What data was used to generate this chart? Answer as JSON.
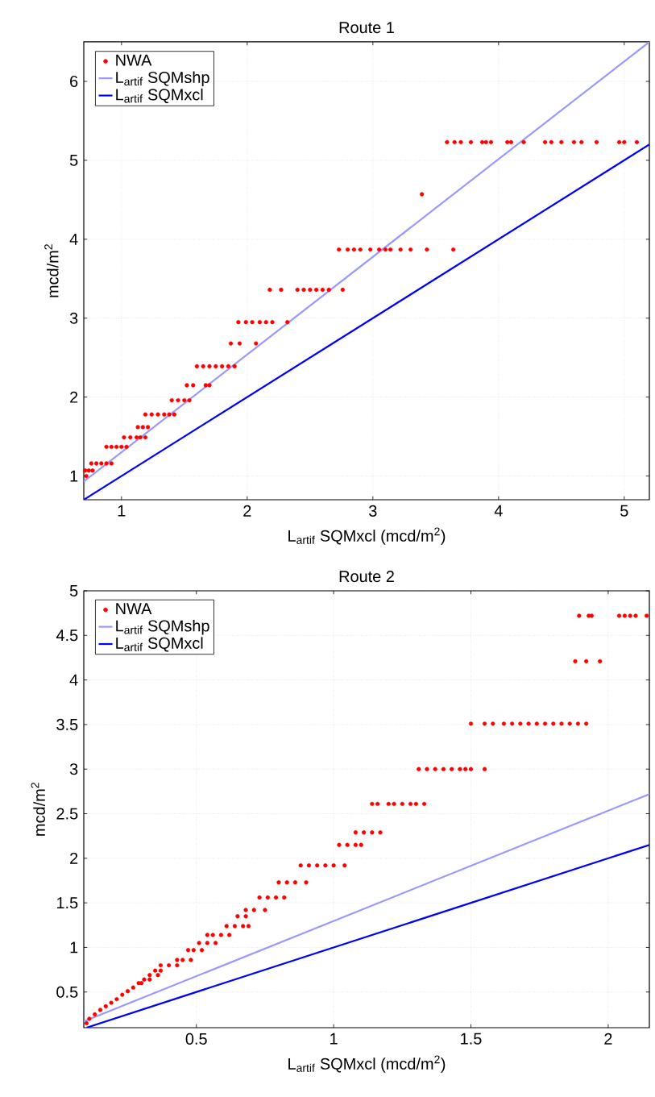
{
  "chart_data": [
    {
      "type": "scatter",
      "title": "Route 1",
      "xlabel": "L$_{artif}$ SQMxcl (mcd/m$^{2}$)",
      "ylabel": "mcd/m$^{2}$",
      "xlim": [
        0.7,
        5.2
      ],
      "ylim": [
        0.7,
        6.5
      ],
      "xticks": [
        1,
        2,
        3,
        4,
        5
      ],
      "yticks": [
        1,
        2,
        3,
        4,
        5,
        6
      ],
      "grid": true,
      "legend": "top left",
      "series": [
        {
          "name": "NWA",
          "type": "scatter",
          "color": "#ff0000",
          "x": [
            0.72,
            0.71,
            0.74,
            0.77,
            0.76,
            0.8,
            0.84,
            0.88,
            0.92,
            0.88,
            0.92,
            0.96,
            1.0,
            1.04,
            1.02,
            1.07,
            1.12,
            1.15,
            1.19,
            1.13,
            1.17,
            1.21,
            1.19,
            1.24,
            1.29,
            1.34,
            1.38,
            1.42,
            1.4,
            1.45,
            1.5,
            1.54,
            1.52,
            1.57,
            1.67,
            1.7,
            1.6,
            1.65,
            1.7,
            1.75,
            1.8,
            1.85,
            1.9,
            1.87,
            1.94,
            2.07,
            1.93,
            1.99,
            2.04,
            2.1,
            2.15,
            2.2,
            2.32,
            2.18,
            2.27,
            2.4,
            2.45,
            2.5,
            2.55,
            2.6,
            2.65,
            2.76,
            2.73,
            2.8,
            2.85,
            2.9,
            2.98,
            3.05,
            3.1,
            3.14,
            3.22,
            3.3,
            3.43,
            3.64,
            3.39,
            3.59,
            3.65,
            3.7,
            3.78,
            3.87,
            3.9,
            3.94,
            4.07,
            4.1,
            4.2,
            4.37,
            4.42,
            4.5,
            4.6,
            4.66,
            4.78,
            4.96,
            5.0,
            5.1
          ],
          "values": [
            1.0,
            1.07,
            1.07,
            1.07,
            1.16,
            1.16,
            1.16,
            1.16,
            1.16,
            1.37,
            1.37,
            1.37,
            1.37,
            1.37,
            1.49,
            1.49,
            1.49,
            1.49,
            1.49,
            1.62,
            1.62,
            1.62,
            1.78,
            1.78,
            1.78,
            1.78,
            1.78,
            1.78,
            1.96,
            1.96,
            1.96,
            1.96,
            2.15,
            2.15,
            2.15,
            2.15,
            2.39,
            2.39,
            2.39,
            2.39,
            2.39,
            2.39,
            2.39,
            2.68,
            2.68,
            2.68,
            2.95,
            2.95,
            2.95,
            2.95,
            2.95,
            2.95,
            2.95,
            3.36,
            3.36,
            3.36,
            3.36,
            3.36,
            3.36,
            3.36,
            3.36,
            3.36,
            3.87,
            3.87,
            3.87,
            3.87,
            3.87,
            3.87,
            3.87,
            3.87,
            3.87,
            3.87,
            3.87,
            3.87,
            4.57,
            5.23,
            5.23,
            5.23,
            5.23,
            5.23,
            5.23,
            5.23,
            5.23,
            5.23,
            5.23,
            5.23,
            5.23,
            5.23,
            5.23,
            5.23,
            5.23,
            5.23,
            5.23,
            5.23
          ]
        },
        {
          "name": "L$_{artif}$ SQMshp",
          "type": "line",
          "color": "#9999ff",
          "x": [
            0.7,
            5.2
          ],
          "values": [
            0.93,
            6.5
          ]
        },
        {
          "name": "L$_{artif}$ SQMxcl",
          "type": "line",
          "color": "#0000ff",
          "x": [
            0.7,
            5.2
          ],
          "values": [
            0.7,
            5.2
          ]
        }
      ]
    },
    {
      "type": "scatter",
      "title": "Route 2",
      "xlabel": "L$_{artif}$ SQMxcl (mcd/m$^{2}$)",
      "ylabel": "mcd/m$^{2}$",
      "xlim": [
        0.09,
        2.15
      ],
      "ylim": [
        0.1,
        5
      ],
      "xticks": [
        0.5,
        1,
        1.5,
        2
      ],
      "yticks": [
        0.5,
        1,
        1.5,
        2,
        2.5,
        3,
        3.5,
        4,
        4.5,
        5
      ],
      "grid": true,
      "legend": "top left",
      "series": [
        {
          "name": "NWA",
          "type": "scatter",
          "color": "#ff0000",
          "x": [
            0.1,
            0.11,
            0.13,
            0.15,
            0.17,
            0.19,
            0.21,
            0.23,
            0.25,
            0.27,
            0.29,
            0.31,
            0.33,
            0.3,
            0.33,
            0.36,
            0.35,
            0.37,
            0.37,
            0.4,
            0.43,
            0.43,
            0.45,
            0.48,
            0.47,
            0.49,
            0.52,
            0.51,
            0.54,
            0.57,
            0.54,
            0.56,
            0.59,
            0.62,
            0.61,
            0.64,
            0.67,
            0.69,
            0.65,
            0.68,
            0.68,
            0.71,
            0.75,
            0.73,
            0.76,
            0.79,
            0.82,
            0.8,
            0.83,
            0.86,
            0.9,
            0.88,
            0.91,
            0.94,
            0.97,
            1.0,
            1.04,
            1.02,
            1.05,
            1.08,
            1.1,
            1.08,
            1.11,
            1.14,
            1.17,
            1.14,
            1.16,
            1.2,
            1.22,
            1.25,
            1.28,
            1.3,
            1.33,
            1.31,
            1.34,
            1.37,
            1.4,
            1.43,
            1.46,
            1.48,
            1.5,
            1.55,
            1.5,
            1.55,
            1.58,
            1.62,
            1.65,
            1.68,
            1.71,
            1.74,
            1.77,
            1.8,
            1.83,
            1.86,
            1.89,
            1.92,
            1.88,
            1.92,
            1.97,
            1.894,
            1.929,
            1.94,
            2.04,
            2.06,
            2.08,
            2.1,
            2.14
          ],
          "values": [
            0.15,
            0.2,
            0.25,
            0.3,
            0.34,
            0.38,
            0.42,
            0.47,
            0.51,
            0.55,
            0.6,
            0.64,
            0.69,
            0.6,
            0.64,
            0.69,
            0.74,
            0.74,
            0.8,
            0.8,
            0.8,
            0.86,
            0.86,
            0.86,
            0.97,
            0.97,
            0.97,
            1.05,
            1.05,
            1.05,
            1.14,
            1.14,
            1.14,
            1.14,
            1.24,
            1.24,
            1.24,
            1.24,
            1.35,
            1.35,
            1.42,
            1.42,
            1.42,
            1.56,
            1.56,
            1.56,
            1.56,
            1.73,
            1.73,
            1.73,
            1.73,
            1.92,
            1.92,
            1.92,
            1.92,
            1.92,
            1.92,
            2.15,
            2.15,
            2.15,
            2.15,
            2.29,
            2.29,
            2.29,
            2.29,
            2.61,
            2.61,
            2.61,
            2.61,
            2.61,
            2.61,
            2.61,
            2.61,
            3.0,
            3.0,
            3.0,
            3.0,
            3.0,
            3.0,
            3.0,
            3.0,
            3.0,
            3.51,
            3.51,
            3.51,
            3.51,
            3.51,
            3.51,
            3.51,
            3.51,
            3.51,
            3.51,
            3.51,
            3.51,
            3.51,
            3.51,
            4.21,
            4.21,
            4.21,
            4.72,
            4.72,
            4.72,
            4.72,
            4.72,
            4.72,
            4.72,
            4.72
          ]
        },
        {
          "name": "L$_{artif}$ SQMshp",
          "type": "line",
          "color": "#9999ff",
          "x": [
            0.09,
            2.15
          ],
          "values": [
            0.17,
            2.72
          ]
        },
        {
          "name": "L$_{artif}$ SQMxcl",
          "type": "line",
          "color": "#0000ff",
          "x": [
            0.1,
            2.15
          ],
          "values": [
            0.1,
            2.15
          ]
        }
      ]
    }
  ]
}
